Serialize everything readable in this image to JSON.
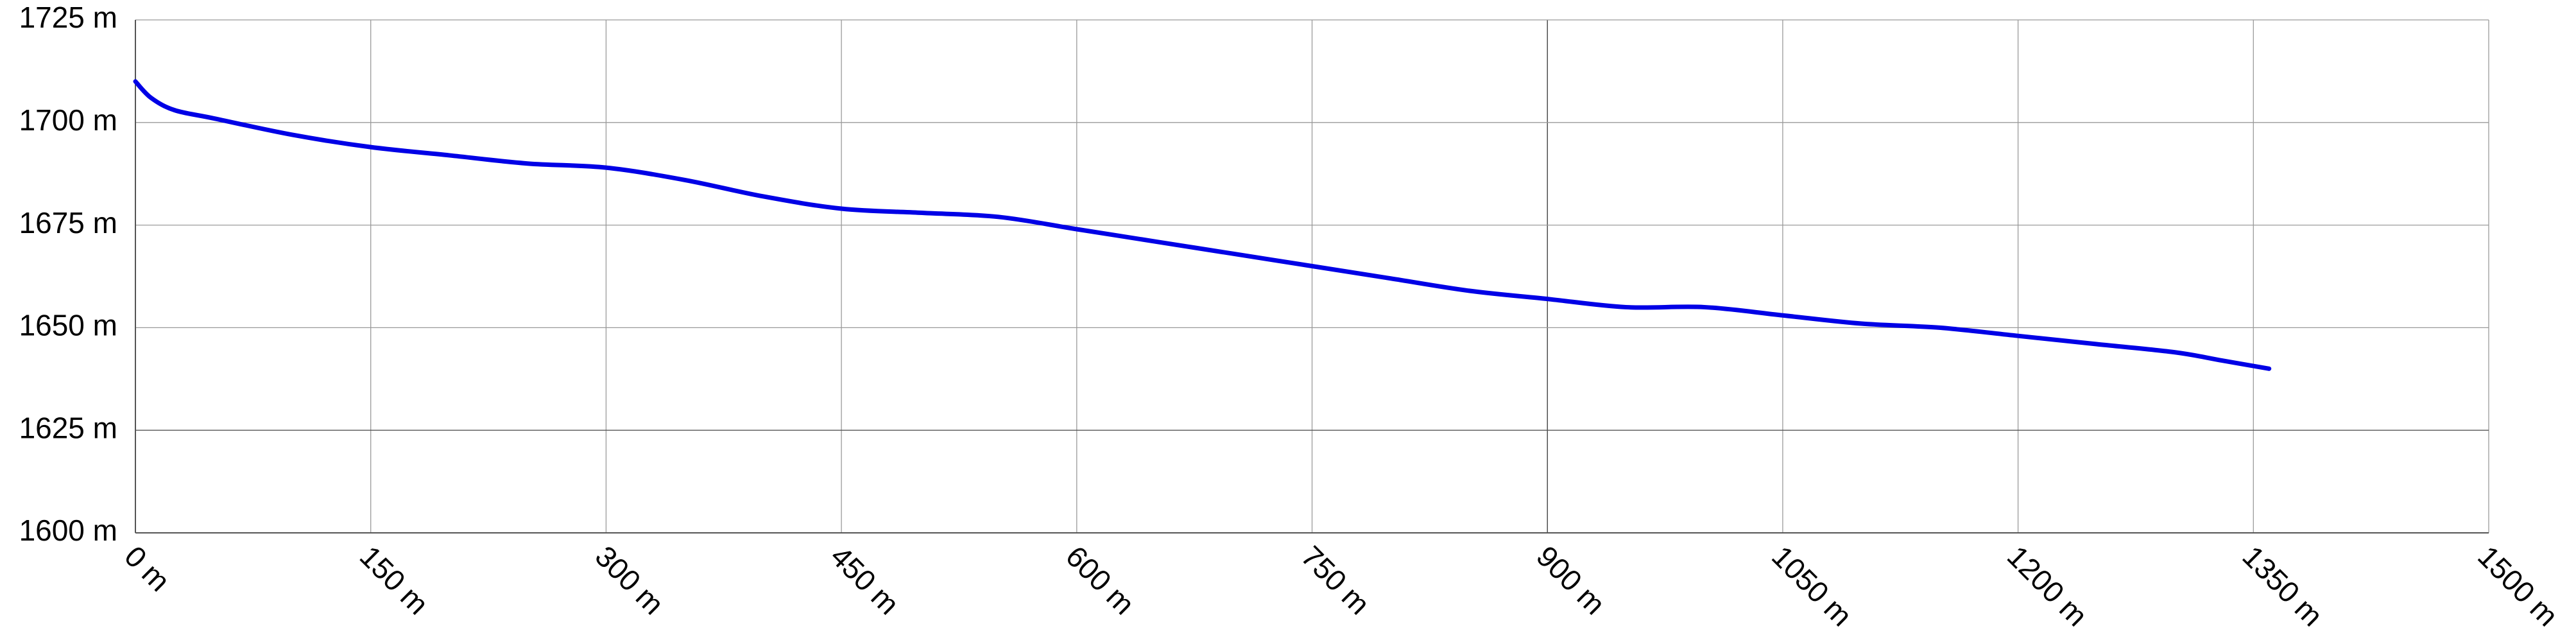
{
  "chart_data": {
    "type": "line",
    "title": "",
    "xlabel": "",
    "ylabel": "",
    "xlim": [
      0,
      1500
    ],
    "ylim": [
      1600,
      1725
    ],
    "grid": true,
    "x_ticks": [
      "0 m",
      "150 m",
      "300 m",
      "450 m",
      "600 m",
      "750 m",
      "900 m",
      "1050 m",
      "1200 m",
      "1350 m",
      "1500 m"
    ],
    "x_tick_values": [
      0,
      150,
      300,
      450,
      600,
      750,
      900,
      1050,
      1200,
      1350,
      1500
    ],
    "y_ticks": [
      "1725 m",
      "1700 m",
      "1675 m",
      "1650 m",
      "1625 m",
      "1600 m"
    ],
    "y_tick_values": [
      1725,
      1700,
      1675,
      1650,
      1625,
      1600
    ],
    "series": [
      {
        "color": "#0000e6",
        "x": [
          0,
          10,
          25,
          50,
          100,
          150,
          200,
          250,
          300,
          350,
          400,
          450,
          500,
          550,
          600,
          650,
          700,
          750,
          800,
          850,
          900,
          950,
          1000,
          1050,
          1100,
          1150,
          1200,
          1250,
          1300,
          1330,
          1360
        ],
        "y": [
          1710,
          1706,
          1703,
          1701,
          1697,
          1694,
          1692,
          1690,
          1689,
          1686,
          1682,
          1679,
          1678,
          1677,
          1674,
          1671,
          1668,
          1665,
          1662,
          1659,
          1657,
          1655,
          1655,
          1653,
          1651,
          1650,
          1648,
          1646,
          1644,
          1642,
          1640
        ]
      }
    ]
  }
}
